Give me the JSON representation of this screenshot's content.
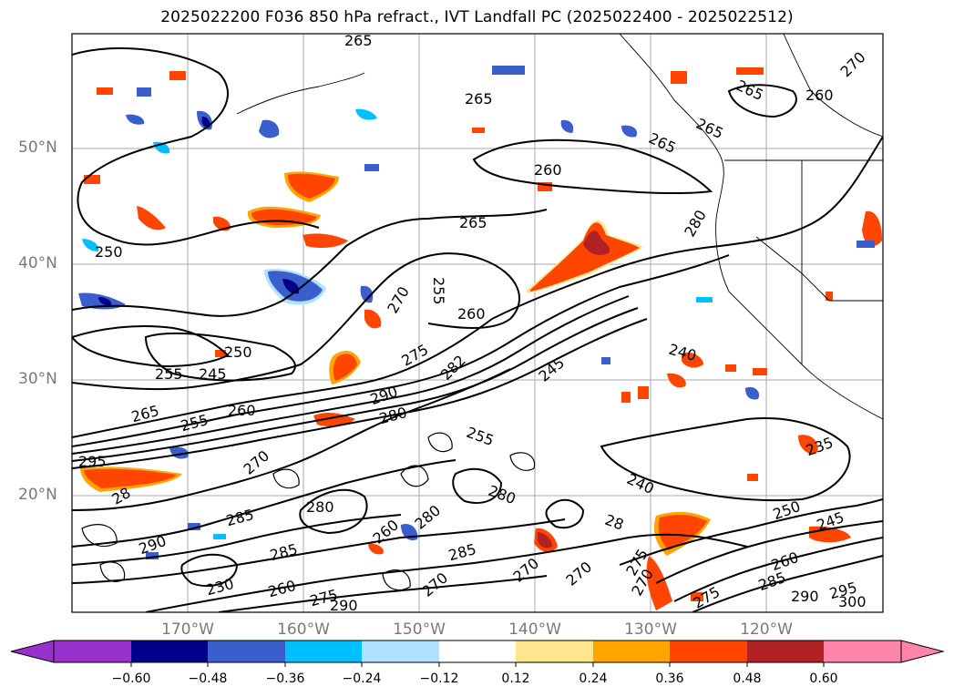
{
  "title": "2025022200 F036 850 hPa refract., IVT Landfall PC (2025022400 - 2025022512)",
  "map": {
    "lat_labels": [
      "50°N",
      "40°N",
      "30°N",
      "20°N"
    ],
    "lon_labels": [
      "170°W",
      "160°W",
      "150°W",
      "140°W",
      "130°W",
      "120°W"
    ],
    "contour_labels": [
      "265",
      "270",
      "265",
      "260",
      "265",
      "265",
      "260",
      "265",
      "280",
      "265",
      "255",
      "270",
      "260",
      "250",
      "245",
      "255",
      "275",
      "282",
      "245",
      "240",
      "260",
      "265",
      "255",
      "290",
      "280",
      "235",
      "295",
      "270",
      "255",
      "240",
      "250",
      "245",
      "280",
      "285",
      "280",
      "260",
      "280",
      "28",
      "285",
      "270",
      "285",
      "270",
      "260",
      "270",
      "275",
      "230",
      "260",
      "295",
      "290",
      "300",
      "285",
      "300",
      "28",
      "290",
      "285",
      "275"
    ],
    "colors": {
      "positive_high": "#ff4500",
      "positive_mid": "#ffa500",
      "positive_low": "#ffe68c",
      "positive_max": "#b22222",
      "negative_low": "#aee0ff",
      "negative_mid": "#00bfff",
      "negative_high": "#3a5fcd",
      "negative_max": "#000080"
    }
  },
  "colorbar": {
    "ticks": [
      "−0.60",
      "−0.48",
      "−0.36",
      "−0.24",
      "−0.12",
      "0.12",
      "0.24",
      "0.36",
      "0.48",
      "0.60"
    ],
    "colors": [
      "#9932cc",
      "#00008b",
      "#3a5fcd",
      "#00bfff",
      "#b0e2ff",
      "#ffffff",
      "#ffe68c",
      "#ffa500",
      "#ff4500",
      "#b22222",
      "#ff86a8"
    ]
  }
}
